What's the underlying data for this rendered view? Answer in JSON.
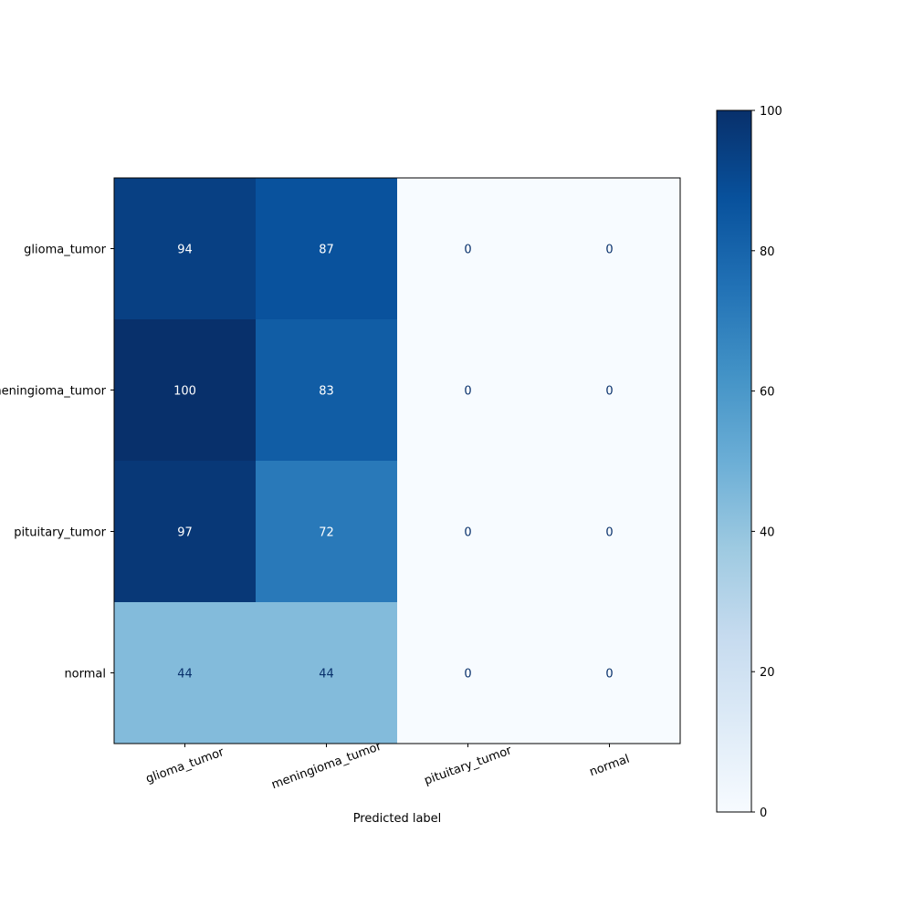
{
  "chart_data": {
    "type": "heatmap",
    "title": "",
    "xlabel": "Predicted label",
    "ylabel": "",
    "rows": [
      "glioma_tumor",
      "meningioma_tumor",
      "pituitary_tumor",
      "normal"
    ],
    "columns": [
      "glioma_tumor",
      "meningioma_tumor",
      "pituitary_tumor",
      "normal"
    ],
    "values": [
      [
        94,
        87,
        0,
        0
      ],
      [
        100,
        83,
        0,
        0
      ],
      [
        97,
        72,
        0,
        0
      ],
      [
        44,
        44,
        0,
        0
      ]
    ],
    "colormap": "Blues",
    "colormap_stops": [
      "#f7fbff",
      "#deebf7",
      "#c6dbef",
      "#9ecae1",
      "#6baed6",
      "#4292c6",
      "#2171b5",
      "#08519c",
      "#08306b"
    ],
    "vmin": 0,
    "vmax": 100,
    "colorbar_ticks": [
      0,
      20,
      40,
      60,
      80,
      100
    ],
    "text_color_dark": "#08306b",
    "text_color_light": "#ffffff"
  }
}
